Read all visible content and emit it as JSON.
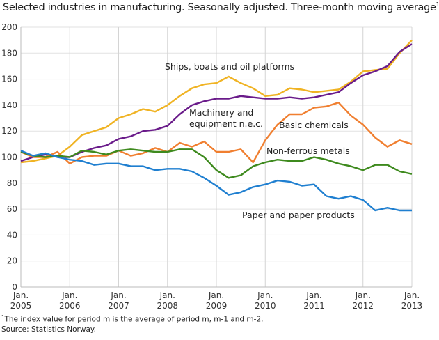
{
  "chart_data": {
    "type": "line",
    "title": "Selected industries in manufacturing. Seasonally adjusted. Three-month moving average",
    "title_footnote_mark": "1",
    "x": [
      2005.0,
      2005.25,
      2005.5,
      2005.75,
      2006.0,
      2006.25,
      2006.5,
      2006.75,
      2007.0,
      2007.25,
      2007.5,
      2007.75,
      2008.0,
      2008.25,
      2008.5,
      2008.75,
      2009.0,
      2009.25,
      2009.5,
      2009.75,
      2010.0,
      2010.25,
      2010.5,
      2010.75,
      2011.0,
      2011.25,
      2011.5,
      2011.75,
      2012.0,
      2012.25,
      2012.5,
      2012.75,
      2013.0
    ],
    "xlim": [
      2005,
      2013
    ],
    "ylim": [
      0,
      200
    ],
    "yticks": [
      0,
      20,
      40,
      60,
      80,
      100,
      120,
      140,
      160,
      180,
      200
    ],
    "xticks": [
      {
        "value": 2005,
        "line1": "Jan.",
        "line2": "2005"
      },
      {
        "value": 2006,
        "line1": "Jan.",
        "line2": "2006"
      },
      {
        "value": 2007,
        "line1": "Jan.",
        "line2": "2007"
      },
      {
        "value": 2008,
        "line1": "Jan.",
        "line2": "2008"
      },
      {
        "value": 2009,
        "line1": "Jan.",
        "line2": "2009"
      },
      {
        "value": 2010,
        "line1": "Jan.",
        "line2": "2010"
      },
      {
        "value": 2011,
        "line1": "Jan.",
        "line2": "2011"
      },
      {
        "value": 2012,
        "line1": "Jan.",
        "line2": "2012"
      },
      {
        "value": 2013,
        "line1": "Jan.",
        "line2": "2013"
      }
    ],
    "grid": true,
    "series": [
      {
        "name": "Ships, boats and oil platforms",
        "color": "#f0b323",
        "values": [
          96,
          97,
          99,
          101,
          108,
          117,
          120,
          123,
          130,
          133,
          137,
          135,
          140,
          147,
          153,
          156,
          157,
          162,
          157,
          153,
          147,
          148,
          153,
          152,
          150,
          151,
          152,
          158,
          166,
          167,
          168,
          180,
          190
        ]
      },
      {
        "name": "Machinery and equipment n.e.c.",
        "name_line1": "Machinery and",
        "name_line2": "equipment n.e.c.",
        "color": "#6a1b8a",
        "values": [
          97,
          100,
          102,
          100,
          100,
          104,
          107,
          109,
          114,
          116,
          120,
          121,
          124,
          133,
          140,
          143,
          145,
          145,
          147,
          146,
          145,
          145,
          146,
          145,
          146,
          148,
          150,
          157,
          163,
          166,
          170,
          181,
          187
        ]
      },
      {
        "name": "Basic chemicals",
        "color": "#f07f30",
        "values": [
          104,
          100,
          100,
          104,
          95,
          100,
          101,
          101,
          105,
          101,
          103,
          107,
          104,
          111,
          108,
          112,
          104,
          104,
          106,
          96,
          113,
          125,
          133,
          133,
          138,
          139,
          142,
          132,
          125,
          115,
          108,
          113,
          110
        ]
      },
      {
        "name": "Non-ferrous metals",
        "color": "#3e8a1e",
        "values": [
          104,
          101,
          100,
          101,
          100,
          105,
          104,
          102,
          105,
          106,
          105,
          104,
          104,
          106,
          106,
          100,
          90,
          84,
          86,
          93,
          96,
          98,
          97,
          97,
          100,
          98,
          95,
          93,
          90,
          94,
          94,
          89,
          87
        ]
      },
      {
        "name": "Paper and paper products",
        "color": "#1f7fd0",
        "values": [
          105,
          101,
          103,
          100,
          98,
          97,
          94,
          95,
          95,
          93,
          93,
          90,
          91,
          91,
          89,
          84,
          78,
          71,
          73,
          77,
          79,
          82,
          81,
          78,
          79,
          70,
          68,
          70,
          67,
          59,
          61,
          59,
          59
        ]
      }
    ]
  },
  "footnote": "The index value for period m is the average of period m, m-1 and m-2.",
  "footnote_mark": "1",
  "source": "Source: Statistics Norway."
}
